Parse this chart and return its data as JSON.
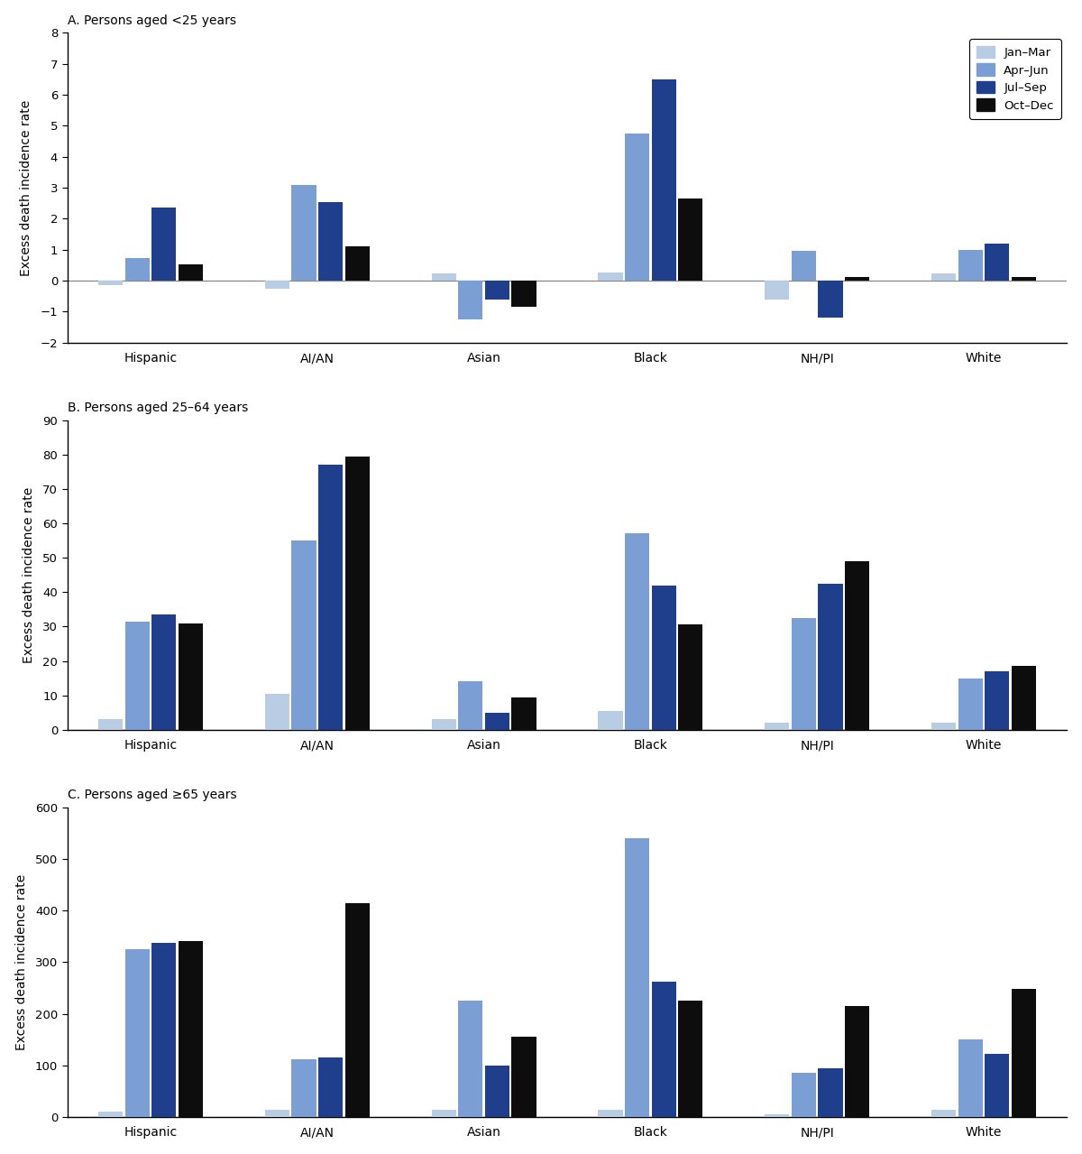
{
  "panel_titles": [
    "A. Persons aged <25 years",
    "B. Persons aged 25–64 years",
    "C. Persons aged ≥65 years"
  ],
  "categories": [
    "Hispanic",
    "AI/AN",
    "Asian",
    "Black",
    "NH/PI",
    "White"
  ],
  "legend_labels": [
    "Jan–Mar",
    "Apr–Jun",
    "Jul–Sep",
    "Oct–Dec"
  ],
  "bar_colors": [
    "#b8cce4",
    "#7b9fd4",
    "#1f3e8c",
    "#0d0d0d"
  ],
  "ylabel": "Excess death incidence rate",
  "panel_A": {
    "ylim": [
      -2,
      8
    ],
    "yticks": [
      -2,
      -1,
      0,
      1,
      2,
      3,
      4,
      5,
      6,
      7,
      8
    ],
    "data": {
      "Hispanic": [
        -0.15,
        0.72,
        2.35,
        0.52
      ],
      "AI/AN": [
        -0.25,
        3.1,
        2.55,
        1.1
      ],
      "Asian": [
        0.22,
        -1.25,
        -0.62,
        -0.85
      ],
      "Black": [
        0.25,
        4.75,
        6.5,
        2.65
      ],
      "NH/PI": [
        -0.6,
        0.95,
        -1.2,
        0.12
      ],
      "White": [
        0.22,
        1.0,
        1.2,
        0.12
      ]
    }
  },
  "panel_B": {
    "ylim": [
      0,
      90
    ],
    "yticks": [
      0,
      10,
      20,
      30,
      40,
      50,
      60,
      70,
      80,
      90
    ],
    "data": {
      "Hispanic": [
        3.0,
        31.5,
        33.5,
        31.0
      ],
      "AI/AN": [
        10.5,
        55.0,
        77.0,
        79.5
      ],
      "Asian": [
        3.0,
        14.0,
        5.0,
        9.5
      ],
      "Black": [
        5.5,
        57.0,
        42.0,
        30.5
      ],
      "NH/PI": [
        2.0,
        32.5,
        42.5,
        49.0
      ],
      "White": [
        2.0,
        15.0,
        17.0,
        18.5
      ]
    }
  },
  "panel_C": {
    "ylim": [
      0,
      600
    ],
    "yticks": [
      0,
      100,
      200,
      300,
      400,
      500,
      600
    ],
    "data": {
      "Hispanic": [
        10.0,
        325.0,
        338.0,
        340.0
      ],
      "AI/AN": [
        14.0,
        112.0,
        115.0,
        415.0
      ],
      "Asian": [
        13.0,
        225.0,
        100.0,
        155.0
      ],
      "Black": [
        14.0,
        540.0,
        262.0,
        225.0
      ],
      "NH/PI": [
        5.0,
        85.0,
        95.0,
        215.0
      ],
      "White": [
        13.0,
        150.0,
        122.0,
        248.0
      ]
    }
  }
}
